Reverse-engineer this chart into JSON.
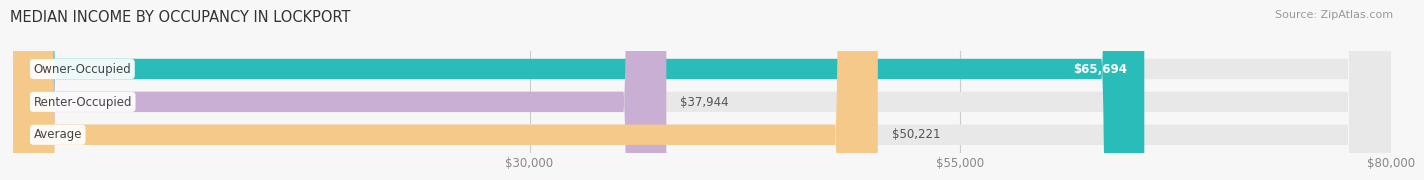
{
  "title": "MEDIAN INCOME BY OCCUPANCY IN LOCKPORT",
  "source": "Source: ZipAtlas.com",
  "categories": [
    "Owner-Occupied",
    "Renter-Occupied",
    "Average"
  ],
  "values": [
    65694,
    37944,
    50221
  ],
  "bar_colors": [
    "#2abcb8",
    "#c9afd4",
    "#f5c98a"
  ],
  "bar_bg_color": "#e8e8e8",
  "value_labels": [
    "$65,694",
    "$37,944",
    "$50,221"
  ],
  "value_label_inside": [
    true,
    false,
    false
  ],
  "xlim": [
    0,
    80000
  ],
  "xticks": [
    30000,
    55000,
    80000
  ],
  "xtick_labels": [
    "$30,000",
    "$55,000",
    "$80,000"
  ],
  "title_fontsize": 10.5,
  "label_fontsize": 8.5,
  "tick_fontsize": 8.5,
  "source_fontsize": 8,
  "bar_height": 0.62,
  "background_color": "#f7f7f7",
  "cat_label_color": "#444444",
  "value_inside_color": "#ffffff",
  "value_outside_color": "#555555"
}
